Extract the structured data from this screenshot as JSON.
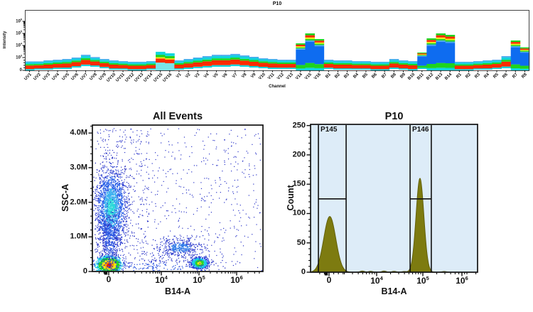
{
  "window": {
    "background": "#ffffff"
  },
  "chart_data": [
    {
      "id": "spectral-ribbon",
      "type": "area",
      "title": "P10",
      "xlabel": "Channel",
      "ylabel": "Intensity",
      "y_scale": "biexponential",
      "ylim": [
        0,
        8000000
      ],
      "grid": false,
      "y_ticks": [
        {
          "label": "10^6",
          "v": 1000000
        },
        {
          "label": "10^5",
          "v": 100000
        },
        {
          "label": "10^4",
          "v": 10000
        },
        {
          "label": "10^3",
          "v": 1000
        },
        {
          "label": "0",
          "v": 0
        }
      ],
      "band_colors": {
        "re": "#ff2a00",
        "gr": "#1ed41e",
        "cy": "#0fd4dc",
        "lc": "#7ae4ea",
        "lb": "#49a6f0",
        "bl": "#0e6cf0",
        "ye": "#f0ee12"
      },
      "kinds": {
        "n": [
          [
            "cy",
            0.14
          ],
          [
            "re",
            0.4
          ],
          [
            "gr",
            0.16
          ],
          [
            "cy",
            0.2
          ],
          [
            "lb",
            0.1
          ]
        ],
        "bl": [
          [
            "cy",
            0.07
          ],
          [
            "gr",
            0.13
          ],
          [
            "bl",
            0.57
          ],
          [
            "lb",
            0.04
          ],
          [
            "gr",
            0.04
          ],
          [
            "ye",
            0.04
          ],
          [
            "re",
            0.06
          ],
          [
            "gr",
            0.05
          ]
        ],
        "lc": [
          [
            "lc",
            0.42
          ],
          [
            "re",
            0.22
          ],
          [
            "ye",
            0.07
          ],
          [
            "gr",
            0.13
          ],
          [
            "cy",
            0.16
          ]
        ]
      },
      "columns": [
        {
          "c": "UV1",
          "lo": 0,
          "hi": 700,
          "k": "n"
        },
        {
          "c": "UV2",
          "lo": 55,
          "hi": 700,
          "k": "n"
        },
        {
          "c": "UV3",
          "lo": 55,
          "hi": 780,
          "k": "n"
        },
        {
          "c": "UV4",
          "lo": 110,
          "hi": 830,
          "k": "n"
        },
        {
          "c": "UV5",
          "lo": 110,
          "hi": 890,
          "k": "n"
        },
        {
          "c": "UV6",
          "lo": 220,
          "hi": 1000,
          "k": "n"
        },
        {
          "c": "UV7",
          "lo": 330,
          "hi": 1700,
          "k": "n"
        },
        {
          "c": "UV8",
          "lo": 280,
          "hi": 1100,
          "k": "n"
        },
        {
          "c": "UV9",
          "lo": 170,
          "hi": 890,
          "k": "n"
        },
        {
          "c": "UV10",
          "lo": 55,
          "hi": 780,
          "k": "n"
        },
        {
          "c": "UV11",
          "lo": 55,
          "hi": 720,
          "k": "n"
        },
        {
          "c": "UV12",
          "lo": 0,
          "hi": 670,
          "k": "n"
        },
        {
          "c": "UV13",
          "lo": 0,
          "hi": 670,
          "k": "n"
        },
        {
          "c": "UV14",
          "lo": 55,
          "hi": 720,
          "k": "n"
        },
        {
          "c": "UV15",
          "lo": 0,
          "hi": 3000,
          "k": "lc"
        },
        {
          "c": "UV16",
          "lo": 0,
          "hi": 2250,
          "k": "lc"
        },
        {
          "c": "V1",
          "lo": 55,
          "hi": 780,
          "k": "n"
        },
        {
          "c": "V2",
          "lo": 110,
          "hi": 890,
          "k": "n"
        },
        {
          "c": "V3",
          "lo": 170,
          "hi": 1000,
          "k": "n"
        },
        {
          "c": "V4",
          "lo": 220,
          "hi": 1310,
          "k": "n"
        },
        {
          "c": "V5",
          "lo": 280,
          "hi": 1700,
          "k": "n"
        },
        {
          "c": "V6",
          "lo": 280,
          "hi": 1700,
          "k": "n"
        },
        {
          "c": "V7",
          "lo": 330,
          "hi": 2000,
          "k": "n"
        },
        {
          "c": "V8",
          "lo": 280,
          "hi": 1500,
          "k": "n"
        },
        {
          "c": "V9",
          "lo": 220,
          "hi": 1150,
          "k": "n"
        },
        {
          "c": "V10",
          "lo": 170,
          "hi": 940,
          "k": "n"
        },
        {
          "c": "V11",
          "lo": 110,
          "hi": 890,
          "k": "n"
        },
        {
          "c": "V12",
          "lo": 110,
          "hi": 830,
          "k": "n"
        },
        {
          "c": "V13",
          "lo": 110,
          "hi": 830,
          "k": "n"
        },
        {
          "c": "V14",
          "lo": 0,
          "hi": 15000,
          "k": "bl"
        },
        {
          "c": "V15",
          "lo": 0,
          "hi": 100000,
          "k": "bl"
        },
        {
          "c": "V16",
          "lo": 0,
          "hi": 34000,
          "k": "bl"
        },
        {
          "c": "B1",
          "lo": 110,
          "hi": 830,
          "k": "n"
        },
        {
          "c": "B2",
          "lo": 55,
          "hi": 780,
          "k": "n"
        },
        {
          "c": "B3",
          "lo": 55,
          "hi": 780,
          "k": "n"
        },
        {
          "c": "B4",
          "lo": 55,
          "hi": 720,
          "k": "n"
        },
        {
          "c": "B5",
          "lo": 55,
          "hi": 720,
          "k": "n"
        },
        {
          "c": "B6",
          "lo": 0,
          "hi": 670,
          "k": "n"
        },
        {
          "c": "B7",
          "lo": 0,
          "hi": 670,
          "k": "n"
        },
        {
          "c": "B8",
          "lo": 110,
          "hi": 890,
          "k": "n"
        },
        {
          "c": "B9",
          "lo": 55,
          "hi": 780,
          "k": "n"
        },
        {
          "c": "B10",
          "lo": 0,
          "hi": 720,
          "k": "n"
        },
        {
          "c": "B11",
          "lo": 110,
          "hi": 2600,
          "k": "bl"
        },
        {
          "c": "B12",
          "lo": 0,
          "hi": 39000,
          "k": "bl"
        },
        {
          "c": "B13",
          "lo": 0,
          "hi": 100000,
          "k": "bl"
        },
        {
          "c": "B14",
          "lo": 0,
          "hi": 76000,
          "k": "bl"
        },
        {
          "c": "R1",
          "lo": 0,
          "hi": 670,
          "k": "n"
        },
        {
          "c": "R2",
          "lo": 0,
          "hi": 670,
          "k": "n"
        },
        {
          "c": "R3",
          "lo": 55,
          "hi": 720,
          "k": "n"
        },
        {
          "c": "R4",
          "lo": 55,
          "hi": 780,
          "k": "n"
        },
        {
          "c": "R5",
          "lo": 110,
          "hi": 830,
          "k": "n"
        },
        {
          "c": "R6",
          "lo": 170,
          "hi": 1310,
          "k": "n"
        },
        {
          "c": "R7",
          "lo": 0,
          "hi": 26000,
          "k": "bl"
        },
        {
          "c": "R8",
          "lo": 0,
          "hi": 7000,
          "k": "bl"
        }
      ]
    },
    {
      "id": "all-events-scatter",
      "type": "scatter",
      "title": "All Events",
      "xlabel": "B14-A",
      "ylabel": "SSC-A",
      "x_scale": "biexponential",
      "ylim": [
        0,
        4230000
      ],
      "grid": false,
      "y_ticks": [
        {
          "label": "0",
          "v": 0
        },
        {
          "label": "1.0M",
          "v": 1000000
        },
        {
          "label": "2.0M",
          "v": 2000000
        },
        {
          "label": "3.0M",
          "v": 3000000
        },
        {
          "label": "4.0M",
          "v": 4000000
        }
      ],
      "x_ticks": [
        {
          "label": "0",
          "f": 0.0958
        },
        {
          "label": "10^4",
          "f": 0.4042
        },
        {
          "label": "10^5",
          "f": 0.625
        },
        {
          "label": "10^6",
          "f": 0.8458
        }
      ],
      "clusters": [
        {
          "name": "debris-hotspot",
          "fx": 0.0958,
          "ssc": 200000,
          "sx": 8,
          "sy": 5.5,
          "n": 1500,
          "pal": "hot"
        },
        {
          "name": "bead-hotspot",
          "fx": 0.625,
          "ssc": 250000,
          "sx": 6,
          "sy": 4,
          "n": 750,
          "pal": "warm"
        },
        {
          "name": "cell-cloud",
          "fx": 0.108,
          "ssc": 1850000,
          "sx": 10.5,
          "sy": 27,
          "n": 2100,
          "pal": "cool"
        },
        {
          "name": "column-streak",
          "fx": 0.1,
          "ssc": 850000,
          "sx": 7,
          "sy": 22,
          "n": 420,
          "pal": "blue"
        },
        {
          "name": "mid-diffuse",
          "fx": 0.512,
          "ssc": 700000,
          "sx": 16,
          "sy": 7,
          "n": 430,
          "pal": "mid"
        },
        {
          "name": "bottom-band",
          "fx": 0.35,
          "ssc": 150000,
          "sx": 55,
          "sy": 6,
          "n": 220,
          "pal": "blue"
        }
      ],
      "background": {
        "n": 900,
        "color": "#2a34c8"
      },
      "palettes": {
        "hot": {
          "t": [
            0.45,
            0.85,
            1.3,
            1.9,
            2.6
          ],
          "c": [
            "#f01800",
            "#ff9a00",
            "#f0e812",
            "#1ed42a",
            "#16c8e8",
            "#2438d8"
          ]
        },
        "warm": {
          "t": [
            0.55,
            1.05,
            1.8,
            2.6
          ],
          "c": [
            "#f0e812",
            "#2fd42a",
            "#18c8e8",
            "#2438d8",
            "#2d3bc8"
          ]
        },
        "cool": {
          "t": [
            0.5,
            1.0,
            1.7,
            2.4
          ],
          "c": [
            "#28d8d8",
            "#3cb0f0",
            "#2b62e8",
            "#2336d0",
            "#2a30c0"
          ]
        },
        "blue": {
          "t": [
            1.0
          ],
          "c": [
            "#2b55e0",
            "#2a34c8"
          ]
        },
        "mid": {
          "t": [
            0.9
          ],
          "c": [
            "#2e7ae8",
            "#2a38cc"
          ]
        }
      }
    },
    {
      "id": "p10-histogram",
      "type": "histogram",
      "title": "P10",
      "xlabel": "B14-A",
      "ylabel": "Count",
      "x_scale": "biexponential",
      "ylim": [
        0,
        252
      ],
      "plot_bg": "#ddecf8",
      "fill": "#7d7b10",
      "stroke": "#62600a",
      "y_ticks": [
        {
          "label": "0",
          "v": 0
        },
        {
          "label": "50",
          "v": 50
        },
        {
          "label": "100",
          "v": 100
        },
        {
          "label": "150",
          "v": 150
        },
        {
          "label": "200",
          "v": 200
        },
        {
          "label": "250",
          "v": 250
        }
      ],
      "x_ticks": [
        {
          "label": "0",
          "f": 0.1106
        },
        {
          "label": "10^4",
          "f": 0.3957
        },
        {
          "label": "10^5",
          "f": 0.6723
        },
        {
          "label": "10^6",
          "f": 0.9064
        }
      ],
      "peaks": [
        {
          "name": "negative-peak",
          "center_f": 0.115,
          "sigma_f": 0.036,
          "height": 95
        },
        {
          "name": "positive-peak",
          "center_f": 0.655,
          "sigma_f": 0.0235,
          "height": 160
        }
      ],
      "baseline_bumps": [
        {
          "f": 0.31,
          "h": 2
        },
        {
          "f": 0.36,
          "h": 1.5
        },
        {
          "f": 0.44,
          "h": 2
        },
        {
          "f": 0.5,
          "h": 1.5
        },
        {
          "f": 0.56,
          "h": 1.2
        },
        {
          "f": 0.8,
          "h": 1.2
        }
      ],
      "gates": [
        {
          "label": "P145",
          "x1_f": 0.047,
          "x2_f": 0.213,
          "level": 125
        },
        {
          "label": "P146",
          "x1_f": 0.596,
          "x2_f": 0.723,
          "level": 125
        }
      ]
    }
  ]
}
